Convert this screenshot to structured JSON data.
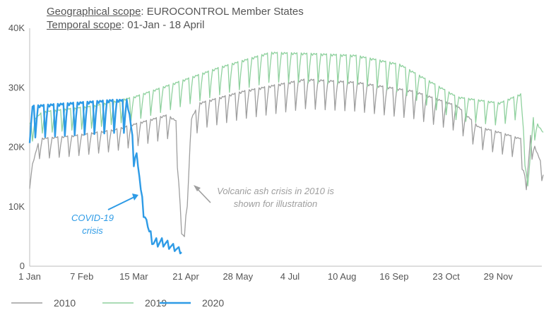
{
  "header": {
    "geo_label": "Geographical scope",
    "geo_value": ": EUROCONTROL Member States",
    "temporal_label": "Temporal scope",
    "temporal_value": ": 01-Jan - 18 April"
  },
  "chart_data": {
    "type": "line",
    "title": "",
    "xlabel": "",
    "ylabel": "",
    "ylim": [
      0,
      40000
    ],
    "xlim_day": [
      1,
      365
    ],
    "y_ticks": [
      {
        "value": 0,
        "label": "0"
      },
      {
        "value": 10000,
        "label": "10K"
      },
      {
        "value": 20000,
        "label": "20K"
      },
      {
        "value": 30000,
        "label": "30K"
      },
      {
        "value": 40000,
        "label": "40K"
      }
    ],
    "x_ticks": [
      {
        "date": "2020-01-01",
        "label": "1 Jan"
      },
      {
        "date": "2020-02-07",
        "label": "7 Feb"
      },
      {
        "date": "2020-03-15",
        "label": "15 Mar"
      },
      {
        "date": "2020-04-21",
        "label": "21 Apr"
      },
      {
        "date": "2020-05-28",
        "label": "28 May"
      },
      {
        "date": "2020-07-04",
        "label": "4 Jul"
      },
      {
        "date": "2020-08-10",
        "label": "10 Aug"
      },
      {
        "date": "2020-09-16",
        "label": "16 Sep"
      },
      {
        "date": "2020-10-23",
        "label": "23 Oct"
      },
      {
        "date": "2020-11-29",
        "label": "29 Nov"
      }
    ],
    "grid": false,
    "legend_position": "bottom-left",
    "series": [
      {
        "name": "2010",
        "color": "#9e9e9e",
        "weekly_low_ratio": 0.84,
        "anchors": [
          [
            "2020-01-01",
            15500
          ],
          [
            "2020-01-08",
            21500
          ],
          [
            "2020-02-01",
            22000
          ],
          [
            "2020-03-01",
            23000
          ],
          [
            "2020-04-08",
            25500
          ],
          [
            "2020-04-14",
            24500
          ],
          [
            "2020-04-16",
            15000
          ],
          [
            "2020-04-18",
            5500
          ],
          [
            "2020-04-20",
            5000
          ],
          [
            "2020-04-22",
            12000
          ],
          [
            "2020-04-25",
            25000
          ],
          [
            "2020-05-01",
            27500
          ],
          [
            "2020-06-01",
            29500
          ],
          [
            "2020-07-15",
            31500
          ],
          [
            "2020-08-20",
            31000
          ],
          [
            "2020-09-30",
            29500
          ],
          [
            "2020-10-31",
            27000
          ],
          [
            "2020-11-15",
            23500
          ],
          [
            "2020-12-01",
            22500
          ],
          [
            "2020-12-15",
            21500
          ],
          [
            "2020-12-19",
            13000
          ],
          [
            "2020-12-22",
            22000
          ],
          [
            "2020-12-31",
            16500
          ]
        ]
      },
      {
        "name": "2019",
        "color": "#8fd19e",
        "weekly_low_ratio": 0.86,
        "anchors": [
          [
            "2020-01-01",
            24000
          ],
          [
            "2020-01-10",
            26000
          ],
          [
            "2020-02-15",
            27000
          ],
          [
            "2020-03-15",
            28500
          ],
          [
            "2020-04-15",
            31000
          ],
          [
            "2020-05-15",
            33500
          ],
          [
            "2020-06-20",
            36000
          ],
          [
            "2020-07-20",
            35800
          ],
          [
            "2020-08-20",
            35500
          ],
          [
            "2020-09-20",
            34000
          ],
          [
            "2020-10-20",
            30000
          ],
          [
            "2020-10-31",
            28500
          ],
          [
            "2020-11-30",
            27500
          ],
          [
            "2020-12-15",
            29000
          ],
          [
            "2020-12-20",
            13500
          ],
          [
            "2020-12-24",
            25000
          ],
          [
            "2020-12-31",
            22500
          ]
        ]
      },
      {
        "name": "2020",
        "color": "#2e9be6",
        "weekly_low_ratio": 0.8,
        "anchors": [
          [
            "2020-01-01",
            21000
          ],
          [
            "2020-01-03",
            27000
          ],
          [
            "2020-02-01",
            27500
          ],
          [
            "2020-03-01",
            28000
          ],
          [
            "2020-03-10",
            28000
          ],
          [
            "2020-03-12",
            25500
          ],
          [
            "2020-03-14",
            22000
          ],
          [
            "2020-03-17",
            19000
          ],
          [
            "2020-03-20",
            13000
          ],
          [
            "2020-03-23",
            9000
          ],
          [
            "2020-03-26",
            5500
          ],
          [
            "2020-03-29",
            4000
          ],
          [
            "2020-04-05",
            4000
          ],
          [
            "2020-04-18",
            2500
          ]
        ]
      }
    ],
    "annotations": [
      {
        "text": "Volcanic ash crisis in 2010 is shown for illustration",
        "lines": [
          "Volcanic ash crisis in 2010 is",
          "shown for illustration"
        ],
        "color": "#9e9e9e"
      },
      {
        "text": "COVID-19 crisis",
        "lines": [
          "COVID-19",
          "crisis"
        ],
        "color": "#2e9be6"
      }
    ]
  },
  "legend": [
    {
      "label": "2010",
      "color": "#9e9e9e"
    },
    {
      "label": "2019",
      "color": "#8fd19e"
    },
    {
      "label": "2020",
      "color": "#2e9be6"
    }
  ]
}
